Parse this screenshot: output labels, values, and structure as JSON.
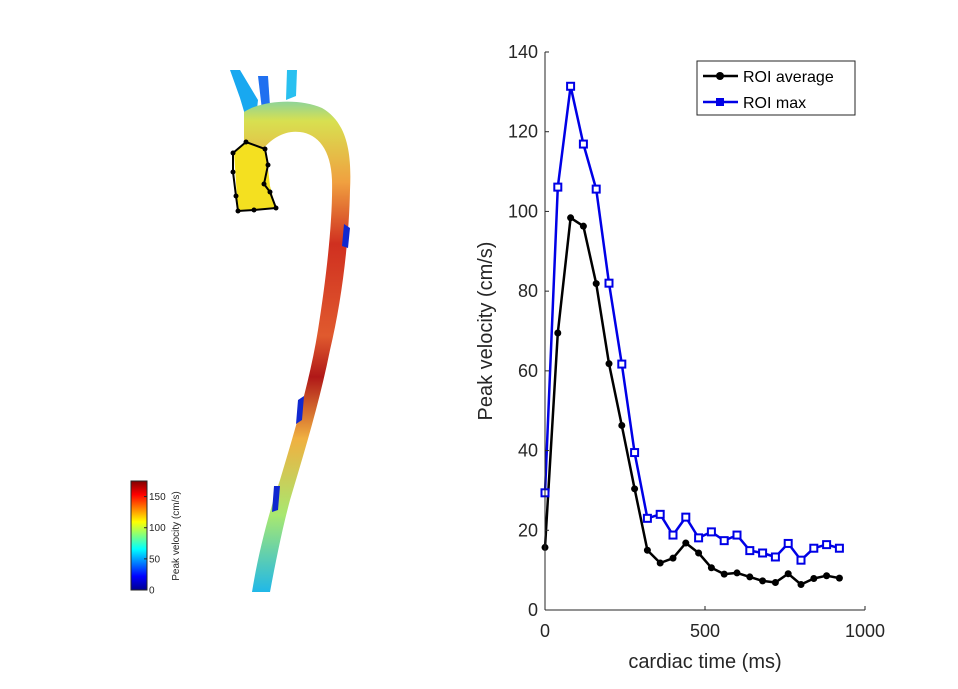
{
  "colors": {
    "average": "#000000",
    "max": "#0000e6",
    "axis": "#262626"
  },
  "heatmap": {
    "colorbar_label": "Peak velocity (cm/s)",
    "colorbar_ticks": [
      "0",
      "50",
      "100",
      "150"
    ],
    "colorbar_range": [
      0,
      175
    ]
  },
  "chart_data": {
    "type": "line",
    "xlabel": "cardiac time (ms)",
    "ylabel": "Peak velocity (cm/s)",
    "xlim": [
      0,
      1000
    ],
    "ylim": [
      0,
      140
    ],
    "xticks": [
      0,
      500,
      1000
    ],
    "yticks": [
      0,
      20,
      40,
      60,
      80,
      100,
      120,
      140
    ],
    "grid": false,
    "legend_position": "top-right",
    "series": [
      {
        "name": "ROI average",
        "marker": "circle",
        "x": [
          0,
          40,
          80,
          120,
          160,
          200,
          240,
          280,
          320,
          360,
          400,
          440,
          480,
          520,
          560,
          600,
          640,
          680,
          720,
          760,
          800,
          840,
          880,
          920
        ],
        "values": [
          15.7,
          69.5,
          98.4,
          96.3,
          81.9,
          61.8,
          46.3,
          30.4,
          15.0,
          11.8,
          13.0,
          16.8,
          14.3,
          10.6,
          9.0,
          9.3,
          8.3,
          7.3,
          6.9,
          9.1,
          6.4,
          7.9,
          8.6,
          8.0
        ]
      },
      {
        "name": "ROI max",
        "marker": "square",
        "x": [
          0,
          40,
          80,
          120,
          160,
          200,
          240,
          280,
          320,
          360,
          400,
          440,
          480,
          520,
          560,
          600,
          640,
          680,
          720,
          760,
          800,
          840,
          880,
          920
        ],
        "values": [
          29.4,
          106.1,
          131.4,
          116.9,
          105.6,
          82.0,
          61.7,
          39.5,
          23.0,
          24.0,
          18.8,
          23.3,
          18.1,
          19.6,
          17.4,
          18.8,
          14.9,
          14.3,
          13.3,
          16.7,
          12.5,
          15.5,
          16.4,
          15.5
        ]
      }
    ]
  }
}
